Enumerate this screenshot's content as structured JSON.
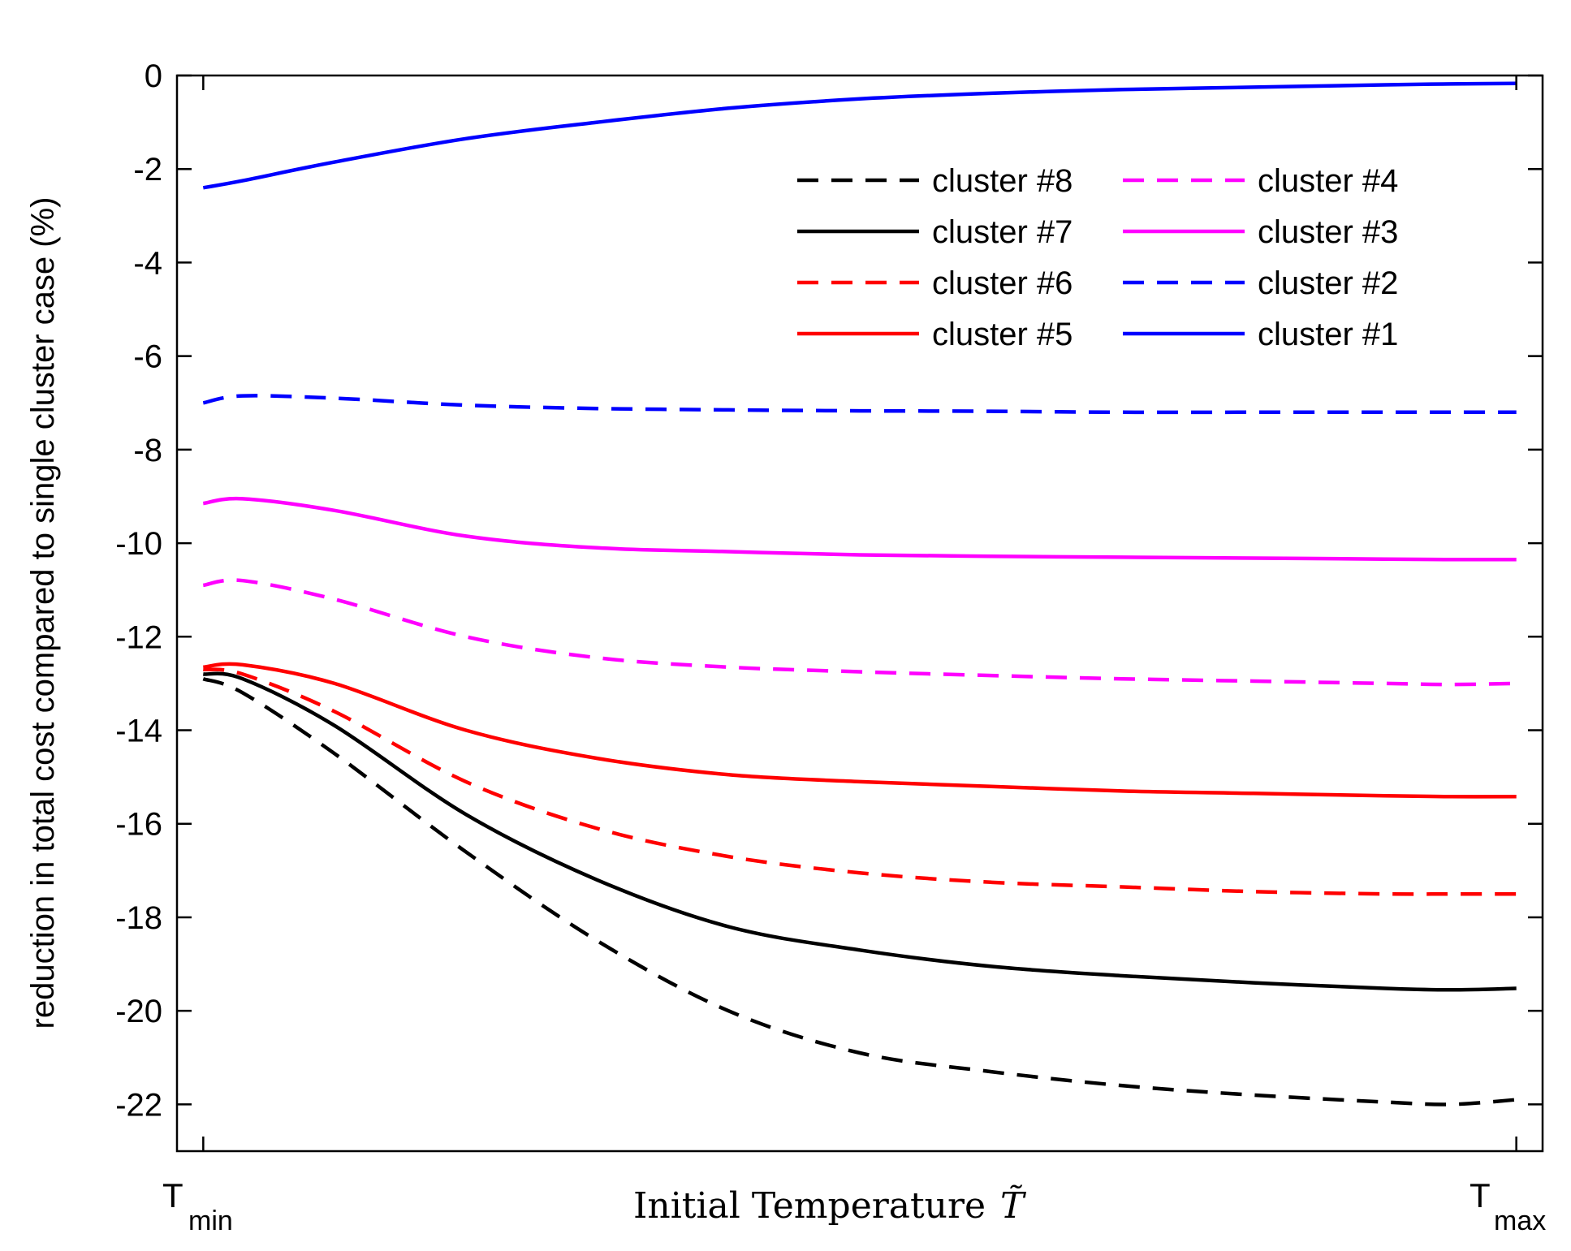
{
  "chart_data": {
    "type": "line",
    "title": "",
    "xlabel": "Initial Temperature",
    "xlabel_symbol": "T̃",
    "ylabel": "reduction in total cost compared to single cluster case (%)",
    "x_tick_labels": [
      {
        "main": "T",
        "sub": "min"
      },
      {
        "main": "T",
        "sub": "max"
      }
    ],
    "x": [
      0,
      0.03,
      0.1,
      0.2,
      0.3,
      0.4,
      0.5,
      0.6,
      0.7,
      0.8,
      0.9,
      0.95,
      1.0
    ],
    "xlim": [
      -0.02,
      1.02
    ],
    "ylim": [
      -23,
      0
    ],
    "yticks": [
      0,
      -2,
      -4,
      -6,
      -8,
      -10,
      -12,
      -14,
      -16,
      -18,
      -20,
      -22
    ],
    "grid": false,
    "legend_position": "top-right",
    "series": [
      {
        "name": "cluster #8",
        "color": "#000000",
        "style": "dashed",
        "values": [
          -12.9,
          -13.2,
          -14.5,
          -16.6,
          -18.5,
          -20.0,
          -20.9,
          -21.3,
          -21.6,
          -21.8,
          -21.95,
          -22.0,
          -21.9
        ]
      },
      {
        "name": "cluster #7",
        "color": "#000000",
        "style": "solid",
        "values": [
          -12.8,
          -12.9,
          -13.9,
          -15.8,
          -17.2,
          -18.2,
          -18.7,
          -19.05,
          -19.25,
          -19.4,
          -19.52,
          -19.55,
          -19.52
        ]
      },
      {
        "name": "cluster #6",
        "color": "#ff0000",
        "style": "dashed",
        "values": [
          -12.7,
          -12.8,
          -13.6,
          -15.1,
          -16.1,
          -16.7,
          -17.05,
          -17.25,
          -17.35,
          -17.45,
          -17.5,
          -17.5,
          -17.5
        ]
      },
      {
        "name": "cluster #5",
        "color": "#ff0000",
        "style": "solid",
        "values": [
          -12.65,
          -12.6,
          -13.0,
          -14.0,
          -14.6,
          -14.95,
          -15.1,
          -15.2,
          -15.3,
          -15.35,
          -15.4,
          -15.42,
          -15.42
        ]
      },
      {
        "name": "cluster #4",
        "color": "#ff00ff",
        "style": "dashed",
        "values": [
          -10.9,
          -10.8,
          -11.2,
          -12.0,
          -12.45,
          -12.65,
          -12.75,
          -12.83,
          -12.9,
          -12.95,
          -13.0,
          -13.02,
          -13.0
        ]
      },
      {
        "name": "cluster #3",
        "color": "#ff00ff",
        "style": "solid",
        "values": [
          -9.15,
          -9.05,
          -9.3,
          -9.85,
          -10.1,
          -10.18,
          -10.25,
          -10.28,
          -10.3,
          -10.32,
          -10.34,
          -10.35,
          -10.35
        ]
      },
      {
        "name": "cluster #2",
        "color": "#0000ff",
        "style": "dashed",
        "values": [
          -7.0,
          -6.85,
          -6.9,
          -7.05,
          -7.12,
          -7.15,
          -7.17,
          -7.18,
          -7.2,
          -7.2,
          -7.2,
          -7.2,
          -7.2
        ]
      },
      {
        "name": "cluster #1",
        "color": "#0000ff",
        "style": "solid",
        "values": [
          -2.4,
          -2.25,
          -1.85,
          -1.35,
          -1.0,
          -0.7,
          -0.5,
          -0.38,
          -0.3,
          -0.25,
          -0.2,
          -0.18,
          -0.17
        ]
      }
    ],
    "legend_columns": [
      [
        "cluster #8",
        "cluster #7",
        "cluster #6",
        "cluster #5"
      ],
      [
        "cluster #4",
        "cluster #3",
        "cluster #2",
        "cluster #1"
      ]
    ]
  }
}
